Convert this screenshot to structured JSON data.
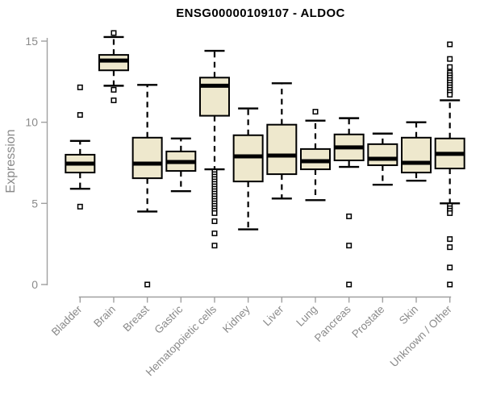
{
  "chart_data": {
    "type": "boxplot",
    "title": "ENSG00000109107 - ALDOC",
    "xlabel": "",
    "ylabel": "Expression",
    "ylim": [
      0,
      15
    ],
    "yticks": [
      0,
      5,
      10,
      15
    ],
    "grid": false,
    "legend": "none",
    "categories": [
      "Bladder",
      "Brain",
      "Breast",
      "Gastric",
      "Hematopoietic cells",
      "Kidney",
      "Liver",
      "Lung",
      "Pancreas",
      "Prostate",
      "Skin",
      "Unknown / Other"
    ],
    "boxes": [
      {
        "category": "Bladder",
        "whisker_low": 5.9,
        "q1": 6.9,
        "median": 7.45,
        "q3": 8.0,
        "whisker_high": 8.85,
        "outliers": [
          12.15,
          10.45,
          4.8
        ]
      },
      {
        "category": "Brain",
        "whisker_low": 12.25,
        "q1": 13.2,
        "median": 13.8,
        "q3": 14.15,
        "whisker_high": 15.25,
        "outliers": [
          15.5,
          12.0,
          11.35
        ]
      },
      {
        "category": "Breast",
        "whisker_low": 4.5,
        "q1": 6.55,
        "median": 7.45,
        "q3": 9.05,
        "whisker_high": 12.3,
        "outliers": [
          0.0
        ]
      },
      {
        "category": "Gastric",
        "whisker_low": 5.75,
        "q1": 7.0,
        "median": 7.55,
        "q3": 8.2,
        "whisker_high": 9.0,
        "outliers": []
      },
      {
        "category": "Hematopoietic cells",
        "whisker_low": 7.1,
        "q1": 10.4,
        "median": 12.25,
        "q3": 12.75,
        "whisker_high": 14.4,
        "outliers": [
          6.95,
          6.8,
          6.65,
          6.5,
          6.35,
          6.2,
          6.05,
          5.9,
          5.75,
          5.6,
          5.45,
          5.3,
          5.15,
          5.0,
          4.85,
          4.7,
          4.55,
          4.4,
          3.9,
          3.15,
          2.4
        ]
      },
      {
        "category": "Kidney",
        "whisker_low": 3.4,
        "q1": 6.35,
        "median": 7.9,
        "q3": 9.2,
        "whisker_high": 10.85,
        "outliers": []
      },
      {
        "category": "Liver",
        "whisker_low": 5.3,
        "q1": 6.8,
        "median": 7.95,
        "q3": 9.85,
        "whisker_high": 12.4,
        "outliers": []
      },
      {
        "category": "Lung",
        "whisker_low": 5.2,
        "q1": 7.1,
        "median": 7.6,
        "q3": 8.35,
        "whisker_high": 10.1,
        "outliers": [
          10.65
        ]
      },
      {
        "category": "Pancreas",
        "whisker_low": 7.25,
        "q1": 7.65,
        "median": 8.45,
        "q3": 9.25,
        "whisker_high": 10.25,
        "outliers": [
          4.2,
          2.4,
          0.0
        ]
      },
      {
        "category": "Prostate",
        "whisker_low": 6.15,
        "q1": 7.35,
        "median": 7.75,
        "q3": 8.65,
        "whisker_high": 9.3,
        "outliers": []
      },
      {
        "category": "Skin",
        "whisker_low": 6.4,
        "q1": 6.9,
        "median": 7.5,
        "q3": 9.05,
        "whisker_high": 10.0,
        "outliers": []
      },
      {
        "category": "Unknown / Other",
        "whisker_low": 5.0,
        "q1": 7.15,
        "median": 8.05,
        "q3": 9.0,
        "whisker_high": 11.35,
        "outliers": [
          14.8,
          13.9,
          13.4,
          13.05,
          12.9,
          12.75,
          12.6,
          12.45,
          12.3,
          12.15,
          12.0,
          11.85,
          11.7,
          4.85,
          4.7,
          4.55,
          4.4,
          2.8,
          2.3,
          1.05,
          0.0
        ]
      }
    ],
    "colors": {
      "box_fill": "#EEE8CD",
      "box_border": "#000000",
      "median": "#000000",
      "whisker": "#000000",
      "outlier_fill": "#FFFFFF",
      "axis": "#A0A0A0",
      "tick_label": "#8A8A8A",
      "title": "#000000"
    }
  }
}
